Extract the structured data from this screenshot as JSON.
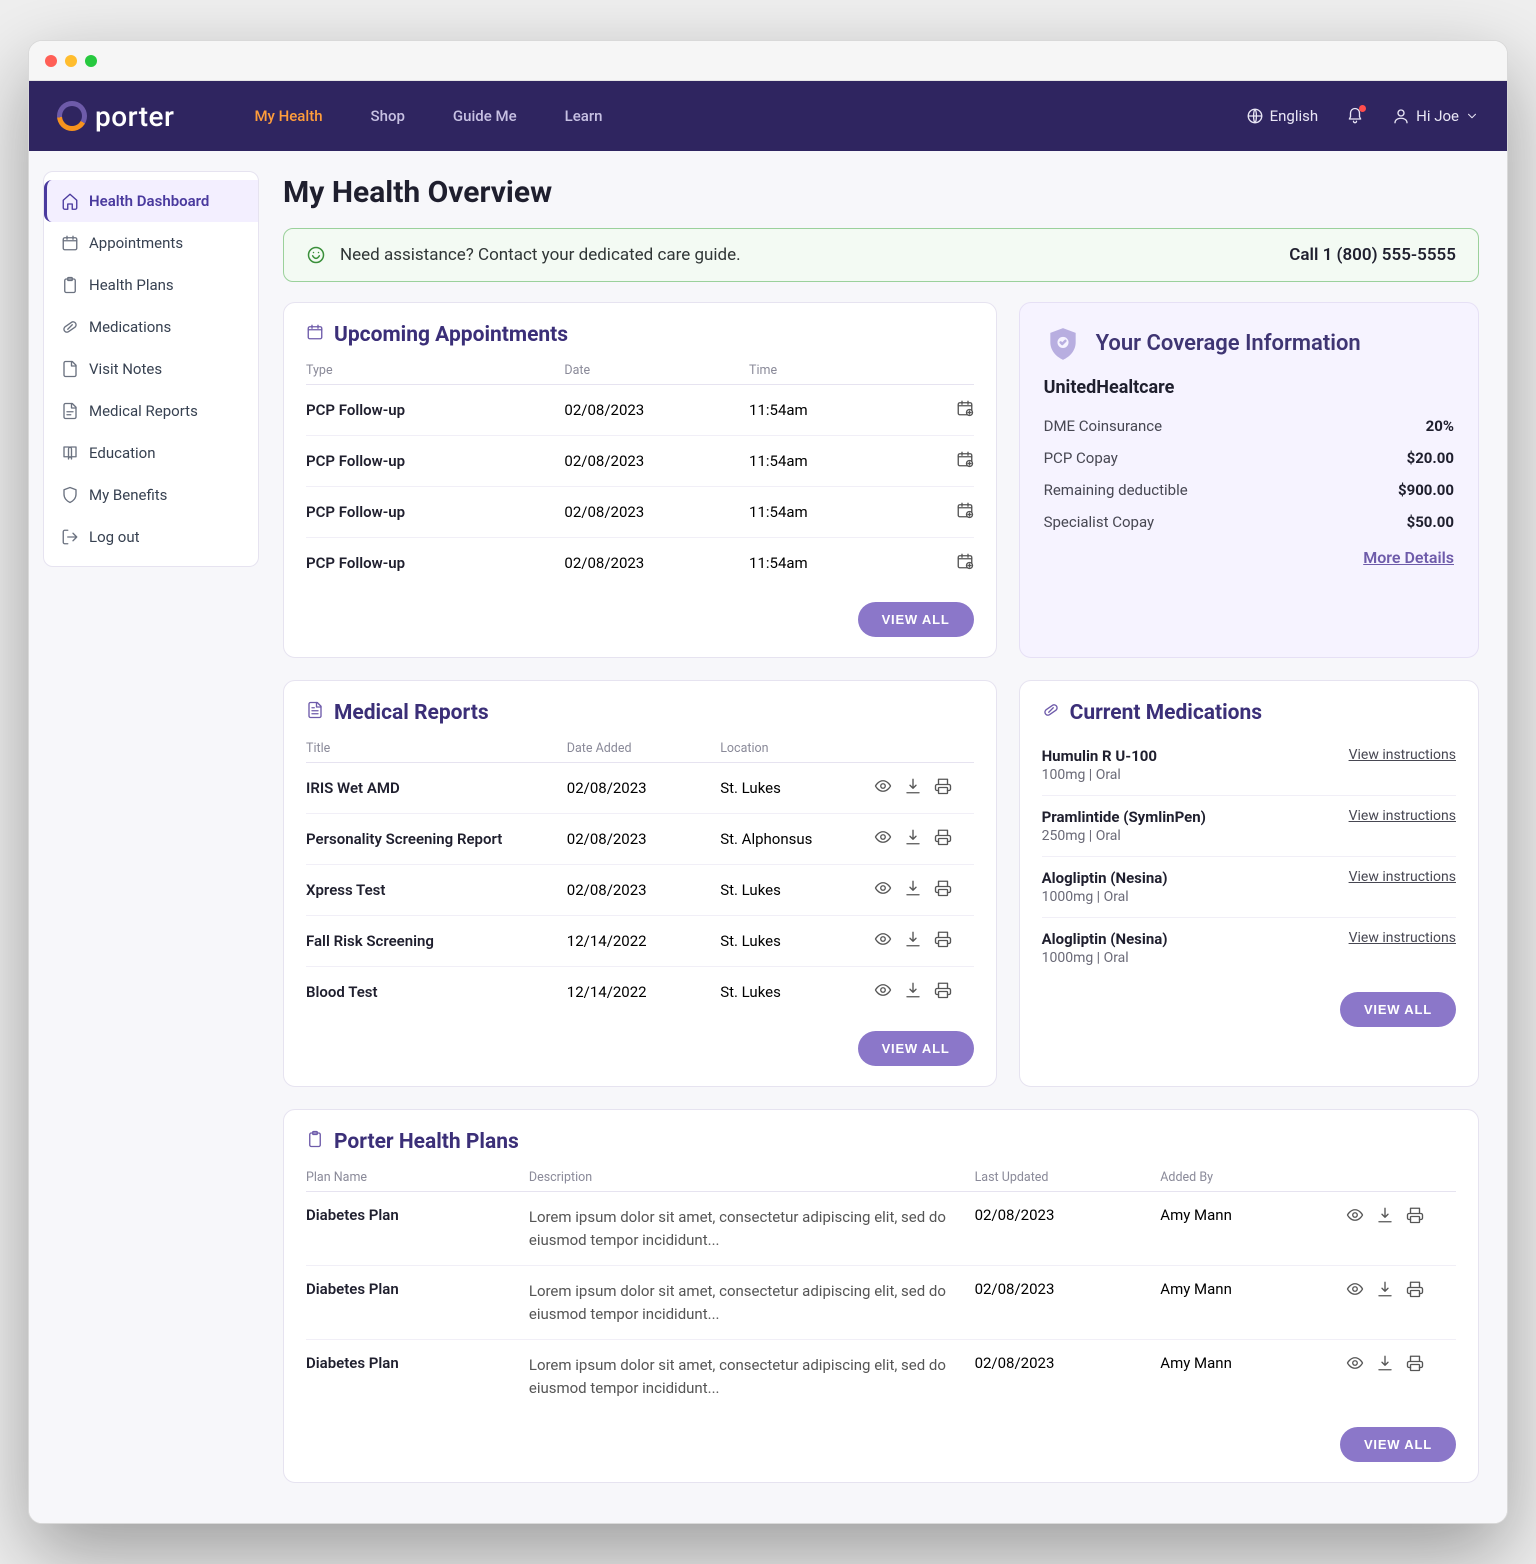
{
  "brand": "porter",
  "topnav": {
    "links": [
      "My Health",
      "Shop",
      "Guide Me",
      "Learn"
    ],
    "activeIndex": 0,
    "language": "English",
    "greeting": "Hi Joe"
  },
  "sidebar": {
    "items": [
      {
        "label": "Health Dashboard",
        "icon": "home"
      },
      {
        "label": "Appointments",
        "icon": "calendar"
      },
      {
        "label": "Health Plans",
        "icon": "clipboard"
      },
      {
        "label": "Medications",
        "icon": "pill"
      },
      {
        "label": "Visit Notes",
        "icon": "file"
      },
      {
        "label": "Medical Reports",
        "icon": "file-text"
      },
      {
        "label": "Education",
        "icon": "book"
      },
      {
        "label": "My Benefits",
        "icon": "shield"
      },
      {
        "label": "Log out",
        "icon": "logout"
      }
    ],
    "activeIndex": 0
  },
  "page": {
    "title": "My Health Overview"
  },
  "banner": {
    "text": "Need assistance? Contact your dedicated care guide.",
    "phone": "Call 1 (800) 555-5555"
  },
  "appointments": {
    "title": "Upcoming Appointments",
    "columns": [
      "Type",
      "Date",
      "Time"
    ],
    "rows": [
      {
        "type": "PCP Follow-up",
        "date": "02/08/2023",
        "time": "11:54am"
      },
      {
        "type": "PCP Follow-up",
        "date": "02/08/2023",
        "time": "11:54am"
      },
      {
        "type": "PCP Follow-up",
        "date": "02/08/2023",
        "time": "11:54am"
      },
      {
        "type": "PCP Follow-up",
        "date": "02/08/2023",
        "time": "11:54am"
      }
    ],
    "viewAll": "VIEW ALL"
  },
  "coverage": {
    "title": "Your Coverage Information",
    "provider": "UnitedHealtcare",
    "rows": [
      {
        "label": "DME Coinsurance",
        "value": "20%"
      },
      {
        "label": "PCP Copay",
        "value": "$20.00"
      },
      {
        "label": "Remaining deductible",
        "value": "$900.00"
      },
      {
        "label": "Specialist Copay",
        "value": "$50.00"
      }
    ],
    "moreLabel": "More Details"
  },
  "reports": {
    "title": "Medical Reports",
    "columns": [
      "Title",
      "Date Added",
      "Location"
    ],
    "rows": [
      {
        "title": "IRIS Wet AMD",
        "date": "02/08/2023",
        "location": "St. Lukes"
      },
      {
        "title": "Personality Screening Report",
        "date": "02/08/2023",
        "location": "St. Alphonsus"
      },
      {
        "title": "Xpress Test",
        "date": "02/08/2023",
        "location": "St. Lukes"
      },
      {
        "title": "Fall Risk Screening",
        "date": "12/14/2022",
        "location": "St. Lukes"
      },
      {
        "title": "Blood Test",
        "date": "12/14/2022",
        "location": "St. Lukes"
      }
    ],
    "viewAll": "VIEW ALL"
  },
  "medications": {
    "title": "Current Medications",
    "linkLabel": "View instructions",
    "items": [
      {
        "name": "Humulin R U-100",
        "dose": "100mg | Oral"
      },
      {
        "name": "Pramlintide (SymlinPen)",
        "dose": "250mg | Oral"
      },
      {
        "name": "Alogliptin (Nesina)",
        "dose": "1000mg | Oral"
      },
      {
        "name": "Alogliptin (Nesina)",
        "dose": "1000mg | Oral"
      }
    ],
    "viewAll": "VIEW ALL"
  },
  "plans": {
    "title": "Porter Health Plans",
    "columns": [
      "Plan Name",
      "Description",
      "Last Updated",
      "Added By"
    ],
    "rows": [
      {
        "name": "Diabetes Plan",
        "desc": "Lorem ipsum dolor sit amet, consectetur adipiscing elit, sed do eiusmod tempor incididunt...",
        "updated": "02/08/2023",
        "by": "Amy Mann"
      },
      {
        "name": "Diabetes Plan",
        "desc": "Lorem ipsum dolor sit amet, consectetur adipiscing elit, sed do eiusmod tempor incididunt...",
        "updated": "02/08/2023",
        "by": "Amy Mann"
      },
      {
        "name": "Diabetes Plan",
        "desc": "Lorem ipsum dolor sit amet, consectetur adipiscing elit, sed do eiusmod tempor incididunt...",
        "updated": "02/08/2023",
        "by": "Amy Mann"
      }
    ],
    "viewAll": "VIEW ALL"
  },
  "colors": {
    "navbar": "#2f2560",
    "accent": "#6e5baa",
    "button": "#8b77c9",
    "activeNav": "#ff9d3b",
    "bannerBorder": "#9bd19b",
    "bannerBg": "#f3faf3",
    "coverageBg": "#f6f3ff"
  }
}
